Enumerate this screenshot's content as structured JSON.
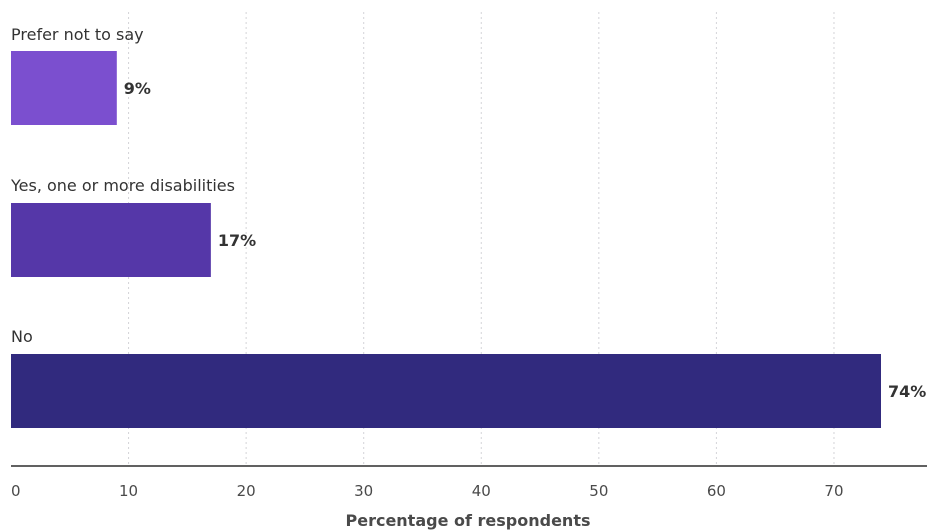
{
  "chart_data": {
    "type": "bar",
    "orientation": "horizontal",
    "categories": [
      "Prefer not to say",
      "Yes, one or more disabilities",
      "No"
    ],
    "values": [
      9,
      17,
      74
    ],
    "value_labels": [
      "9%",
      "17%",
      "74%"
    ],
    "colors": [
      "#7b4fcf",
      "#5537a8",
      "#312a7e"
    ],
    "xlabel": "Percentage of respondents",
    "xlim": [
      0,
      78
    ],
    "xticks": [
      0,
      10,
      20,
      30,
      40,
      50,
      60,
      70
    ],
    "grid": true
  }
}
